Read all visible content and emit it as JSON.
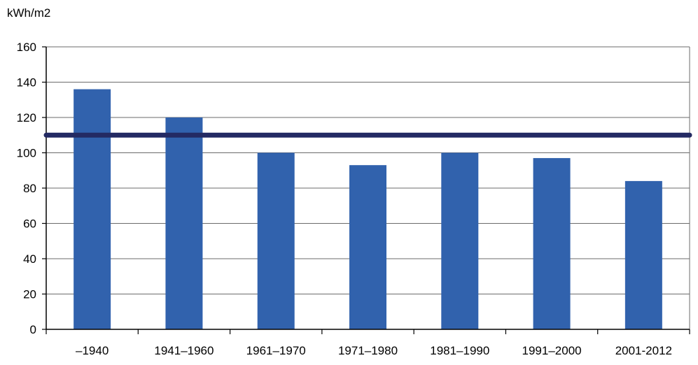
{
  "chart_data": {
    "type": "bar",
    "ylabel": "kWh/m2",
    "categories": [
      "–1940",
      "1941–1960",
      "1961–1970",
      "1971–1980",
      "1981–1990",
      "1991–2000",
      "2001-2012"
    ],
    "values": [
      136,
      120,
      100,
      93,
      100,
      97,
      84
    ],
    "ylim": [
      0,
      160
    ],
    "yticks": [
      0,
      20,
      40,
      60,
      80,
      100,
      120,
      140,
      160
    ],
    "reference_line": 110,
    "grid": true,
    "legend": "none",
    "colors": {
      "bar": "#3162ad",
      "reference_line": "#232a63",
      "grid": "#6b6b6b",
      "axis": "#000000"
    }
  }
}
